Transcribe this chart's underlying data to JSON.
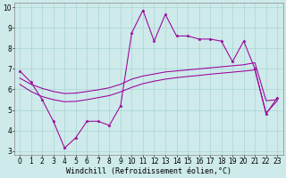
{
  "xlabel": "Windchill (Refroidissement éolien,°C)",
  "background_color": "#ceeaea",
  "line_color": "#990099",
  "xlim": [
    -0.5,
    23.5
  ],
  "ylim": [
    2.8,
    10.2
  ],
  "yticks": [
    3,
    4,
    5,
    6,
    7,
    8,
    9,
    10
  ],
  "xticks": [
    0,
    1,
    2,
    3,
    4,
    5,
    6,
    7,
    8,
    9,
    10,
    11,
    12,
    13,
    14,
    15,
    16,
    17,
    18,
    19,
    20,
    21,
    22,
    23
  ],
  "line1_x": [
    0,
    1,
    2,
    3,
    4,
    5,
    6,
    7,
    8,
    9,
    10,
    11,
    12,
    13,
    14,
    15,
    16,
    17,
    18,
    19,
    20,
    21,
    22,
    23
  ],
  "line1_y": [
    6.9,
    6.35,
    5.5,
    4.45,
    3.15,
    3.65,
    4.45,
    4.45,
    4.25,
    5.2,
    8.75,
    9.85,
    8.35,
    9.65,
    8.6,
    8.6,
    8.45,
    8.45,
    8.35,
    7.35,
    8.35,
    7.0,
    4.8,
    5.6
  ],
  "line2_x": [
    0,
    1,
    2,
    3,
    4,
    5,
    6,
    7,
    8,
    9,
    10,
    11,
    12,
    13,
    14,
    15,
    16,
    17,
    18,
    19,
    20,
    21,
    22,
    23
  ],
  "line2_y": [
    6.55,
    6.25,
    6.05,
    5.9,
    5.8,
    5.82,
    5.9,
    5.98,
    6.08,
    6.25,
    6.5,
    6.65,
    6.75,
    6.85,
    6.9,
    6.95,
    7.0,
    7.05,
    7.1,
    7.15,
    7.2,
    7.3,
    5.45,
    5.5
  ],
  "line3_x": [
    0,
    1,
    2,
    3,
    4,
    5,
    6,
    7,
    8,
    9,
    10,
    11,
    12,
    13,
    14,
    15,
    16,
    17,
    18,
    19,
    20,
    21,
    22,
    23
  ],
  "line3_y": [
    6.25,
    5.9,
    5.65,
    5.5,
    5.4,
    5.42,
    5.5,
    5.6,
    5.7,
    5.88,
    6.1,
    6.28,
    6.4,
    6.5,
    6.57,
    6.63,
    6.68,
    6.74,
    6.79,
    6.84,
    6.89,
    6.95,
    4.85,
    5.45
  ],
  "grid_color": "#aad4d4",
  "label_fontsize": 6.0,
  "tick_fontsize": 5.5
}
